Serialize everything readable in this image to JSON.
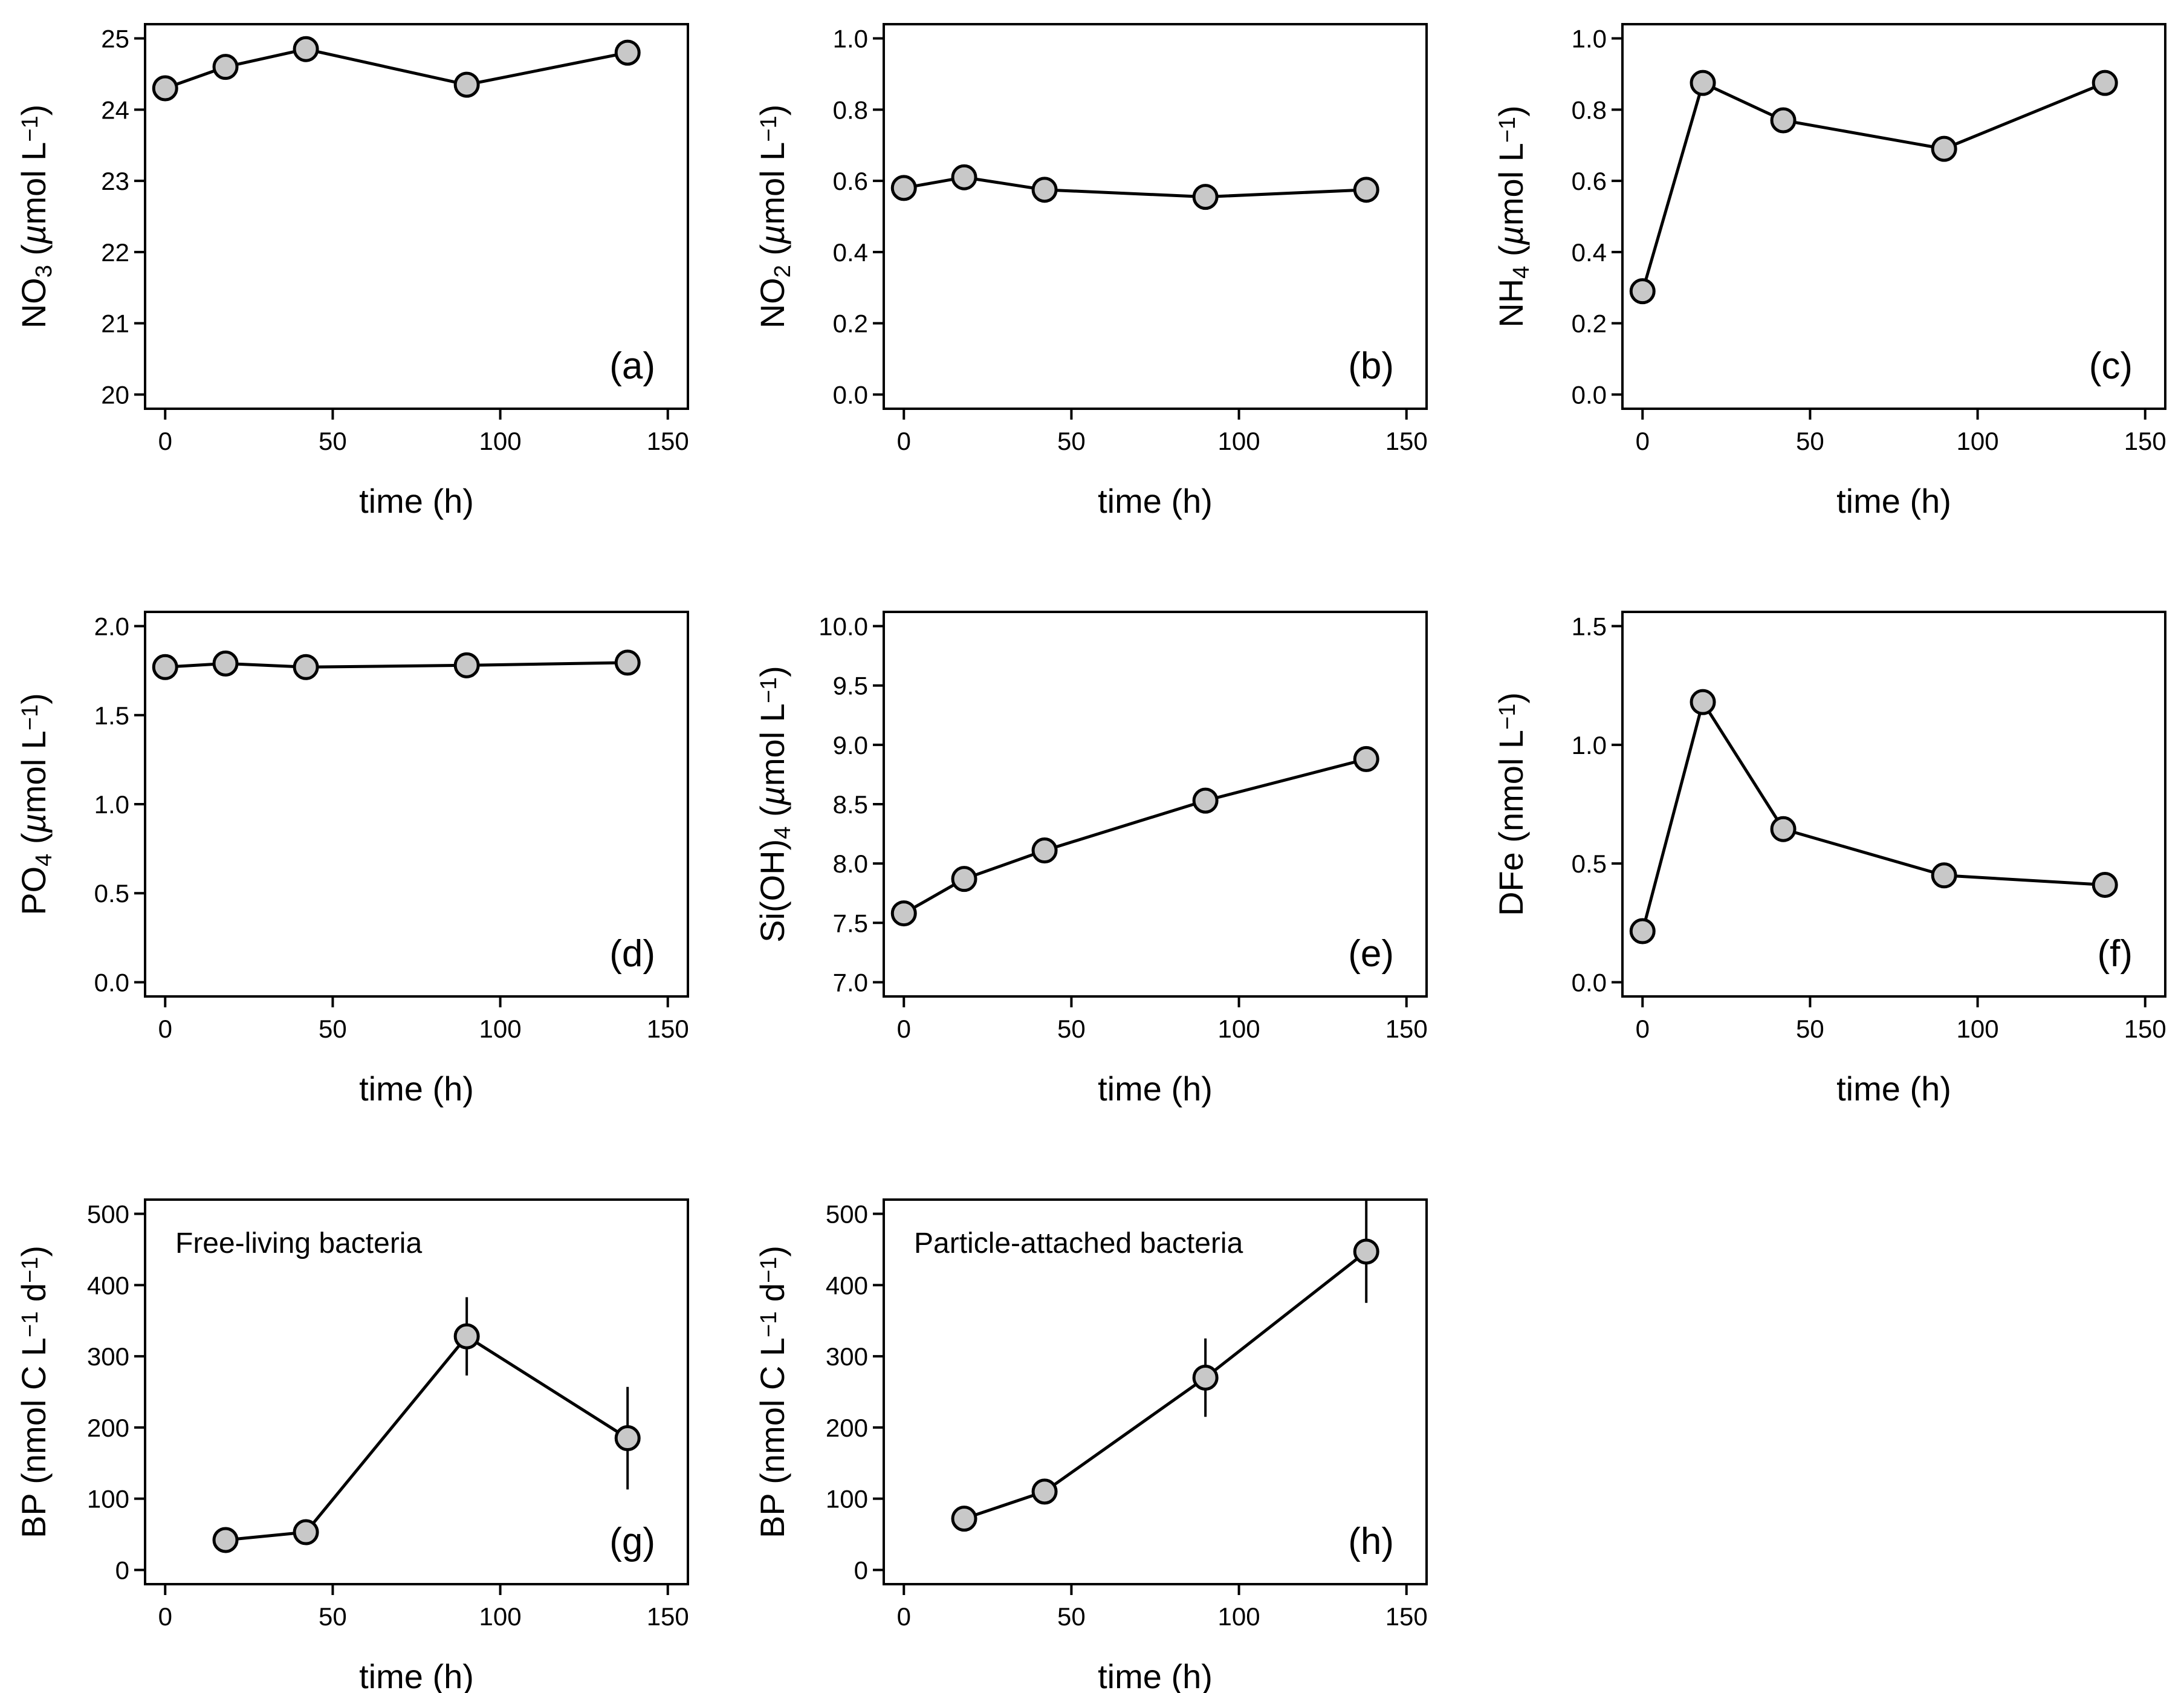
{
  "chart_data": [
    {
      "id": "a",
      "type": "line",
      "tag": "(a)",
      "annotation": "",
      "ylabel": {
        "pre": "NO",
        "sub": "3",
        "unit": "µmol",
        "unitTail": " L",
        "sup": "−1"
      },
      "xlabel": "time (h)",
      "xlim": [
        -6,
        156
      ],
      "ylim": [
        19.8,
        25.2
      ],
      "xticks": [
        "0",
        "50",
        "100",
        "150"
      ],
      "yticks": [
        "20",
        "21",
        "22",
        "23",
        "24",
        "25"
      ],
      "x": [
        0,
        18,
        42,
        90,
        138
      ],
      "y": [
        24.3,
        24.6,
        24.85,
        24.35,
        24.8
      ],
      "err": [
        null,
        null,
        null,
        null,
        null
      ]
    },
    {
      "id": "b",
      "type": "line",
      "tag": "(b)",
      "annotation": "",
      "ylabel": {
        "pre": "NO",
        "sub": "2",
        "unit": "µmol",
        "unitTail": " L",
        "sup": "−1"
      },
      "xlabel": "time (h)",
      "xlim": [
        -6,
        156
      ],
      "ylim": [
        -0.04,
        1.04
      ],
      "xticks": [
        "0",
        "50",
        "100",
        "150"
      ],
      "yticks": [
        "0.0",
        "0.2",
        "0.4",
        "0.6",
        "0.8",
        "1.0"
      ],
      "x": [
        0,
        18,
        42,
        90,
        138
      ],
      "y": [
        0.58,
        0.61,
        0.575,
        0.555,
        0.575
      ],
      "err": [
        null,
        null,
        null,
        null,
        null
      ]
    },
    {
      "id": "c",
      "type": "line",
      "tag": "(c)",
      "annotation": "",
      "ylabel": {
        "pre": "NH",
        "sub": "4",
        "unit": "µmol",
        "unitTail": " L",
        "sup": "−1"
      },
      "xlabel": "time (h)",
      "xlim": [
        -6,
        156
      ],
      "ylim": [
        -0.04,
        1.04
      ],
      "xticks": [
        "0",
        "50",
        "100",
        "150"
      ],
      "yticks": [
        "0.0",
        "0.2",
        "0.4",
        "0.6",
        "0.8",
        "1.0"
      ],
      "x": [
        0,
        18,
        42,
        90,
        138
      ],
      "y": [
        0.29,
        0.875,
        0.77,
        0.69,
        0.875
      ],
      "err": [
        null,
        null,
        null,
        null,
        null
      ]
    },
    {
      "id": "d",
      "type": "line",
      "tag": "(d)",
      "annotation": "",
      "ylabel": {
        "pre": "PO",
        "sub": "4",
        "unit": "µmol",
        "unitTail": " L",
        "sup": "−1"
      },
      "xlabel": "time (h)",
      "xlim": [
        -6,
        156
      ],
      "ylim": [
        -0.08,
        2.08
      ],
      "xticks": [
        "0",
        "50",
        "100",
        "150"
      ],
      "yticks": [
        "0.0",
        "0.5",
        "1.0",
        "1.5",
        "2.0"
      ],
      "x": [
        0,
        18,
        42,
        90,
        138
      ],
      "y": [
        1.77,
        1.79,
        1.77,
        1.78,
        1.795
      ],
      "err": [
        null,
        null,
        null,
        null,
        null
      ]
    },
    {
      "id": "e",
      "type": "line",
      "tag": "(e)",
      "annotation": "",
      "ylabel": {
        "pre": "Si(OH)",
        "sub": "4",
        "unit": "µmol",
        "unitTail": " L",
        "sup": "−1"
      },
      "xlabel": "time (h)",
      "xlim": [
        -6,
        156
      ],
      "ylim": [
        6.88,
        10.12
      ],
      "xticks": [
        "0",
        "50",
        "100",
        "150"
      ],
      "yticks": [
        "7.0",
        "7.5",
        "8.0",
        "8.5",
        "9.0",
        "9.5",
        "10.0"
      ],
      "x": [
        0,
        18,
        42,
        90,
        138
      ],
      "y": [
        7.58,
        7.87,
        8.11,
        8.53,
        8.88
      ],
      "err": [
        null,
        null,
        null,
        null,
        null
      ]
    },
    {
      "id": "f",
      "type": "line",
      "tag": "(f)",
      "annotation": "",
      "ylabel": {
        "pre": "DFe",
        "sub": "",
        "unit": "nmol",
        "unitTail": " L",
        "sup": "−1"
      },
      "xlabel": "time (h)",
      "xlim": [
        -6,
        156
      ],
      "ylim": [
        -0.06,
        1.56
      ],
      "xticks": [
        "0",
        "50",
        "100",
        "150"
      ],
      "yticks": [
        "0.0",
        "0.5",
        "1.0",
        "1.5"
      ],
      "x": [
        0,
        18,
        42,
        90,
        138
      ],
      "y": [
        0.215,
        1.18,
        0.645,
        0.45,
        0.41
      ],
      "err": [
        null,
        null,
        null,
        null,
        null
      ]
    },
    {
      "id": "g",
      "type": "line",
      "tag": "(g)",
      "annotation": "Free-living bacteria",
      "ylabel": {
        "pre": "BP",
        "sub": "",
        "unit": "nmol C",
        "unitTail": " L",
        "sup": "−1",
        "tail2": " d",
        "sup2": "−1"
      },
      "xlabel": "time (h)",
      "xlim": [
        -6,
        156
      ],
      "ylim": [
        -20,
        520
      ],
      "xticks": [
        "0",
        "50",
        "100",
        "150"
      ],
      "yticks": [
        "0",
        "100",
        "200",
        "300",
        "400",
        "500"
      ],
      "x": [
        18,
        42,
        90,
        138
      ],
      "y": [
        42,
        53,
        328,
        185
      ],
      "err": [
        null,
        null,
        55,
        72
      ]
    },
    {
      "id": "h",
      "type": "line",
      "tag": "(h)",
      "annotation": "Particle-attached bacteria",
      "ylabel": {
        "pre": "BP",
        "sub": "",
        "unit": "nmol C",
        "unitTail": " L",
        "sup": "−1",
        "tail2": " d",
        "sup2": "−1"
      },
      "xlabel": "time (h)",
      "xlim": [
        -6,
        156
      ],
      "ylim": [
        -20,
        520
      ],
      "xticks": [
        "0",
        "50",
        "100",
        "150"
      ],
      "yticks": [
        "0",
        "100",
        "200",
        "300",
        "400",
        "500"
      ],
      "x": [
        18,
        42,
        90,
        138
      ],
      "y": [
        72,
        110,
        270,
        447
      ],
      "err": [
        null,
        null,
        55,
        72
      ]
    }
  ]
}
